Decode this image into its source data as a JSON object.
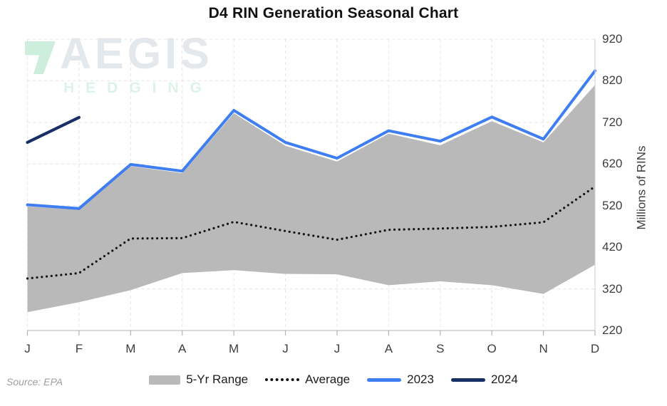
{
  "title": "D4 RIN Generation Seasonal Chart",
  "source_note": "Source: EPA",
  "watermark": {
    "brand": "AEGIS",
    "subbrand": "HEDGING"
  },
  "y_axis_label": "Millions of RINs",
  "colors": {
    "range_fill": "#b9b9b9",
    "average_line": "#141414",
    "line_2023": "#3e7df2",
    "line_2024": "#172f66",
    "grid": "#e4e4e4",
    "axis": "#c3c3c3",
    "tick": "#b2b2b2",
    "plot_border": "#d6d6d6"
  },
  "chart_data": {
    "type": "line",
    "title": "D4 RIN Generation Seasonal Chart",
    "categories": [
      "J",
      "F",
      "M",
      "A",
      "M",
      "J",
      "J",
      "A",
      "S",
      "O",
      "N",
      "D"
    ],
    "ylabel": "Millions of RINs",
    "ylim": [
      220,
      920
    ],
    "yticks": [
      220,
      320,
      420,
      520,
      620,
      720,
      820,
      920
    ],
    "grid": "dashed-both-axes",
    "legend_position": "bottom",
    "series": [
      {
        "name": "5-Yr Range",
        "type": "band",
        "max": [
          518,
          510,
          615,
          598,
          742,
          664,
          626,
          693,
          665,
          723,
          672,
          810
        ],
        "min": [
          264,
          288,
          317,
          358,
          365,
          356,
          355,
          329,
          338,
          329,
          308,
          378
        ]
      },
      {
        "name": "Average",
        "type": "dotted-line",
        "values": [
          345,
          358,
          441,
          442,
          481,
          459,
          438,
          462,
          465,
          469,
          480,
          566
        ]
      },
      {
        "name": "2023",
        "type": "line",
        "values": [
          522,
          513,
          619,
          603,
          749,
          672,
          634,
          700,
          675,
          733,
          680,
          844
        ]
      },
      {
        "name": "2024",
        "type": "line",
        "values": [
          672,
          732
        ]
      }
    ]
  }
}
